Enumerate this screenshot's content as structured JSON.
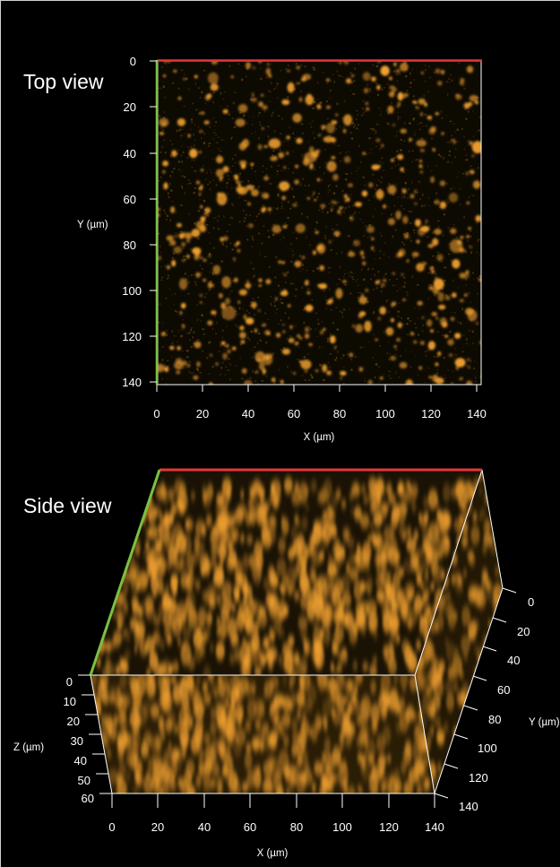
{
  "top_view": {
    "title": "Top view",
    "x_axis_label": "X (µm)",
    "y_axis_label": "Y (µm)",
    "x_ticks": [
      "0",
      "20",
      "40",
      "60",
      "80",
      "100",
      "120",
      "140"
    ],
    "y_ticks": [
      "0",
      "20",
      "40",
      "60",
      "80",
      "100",
      "120",
      "140"
    ]
  },
  "side_view": {
    "title": "Side view",
    "x_axis_label": "X (µm)",
    "y_axis_label": "Y (µm)",
    "z_axis_label": "Z (µm)",
    "x_ticks": [
      "0",
      "20",
      "40",
      "60",
      "80",
      "100",
      "120",
      "140"
    ],
    "y_ticks": [
      "0",
      "20",
      "40",
      "60",
      "80",
      "100",
      "120",
      "140"
    ],
    "z_ticks": [
      "0",
      "10",
      "20",
      "30",
      "40",
      "50",
      "60"
    ]
  },
  "colors": {
    "background": "#000000",
    "particle": "#f0a030",
    "x_axis_edge": "#e8363a",
    "y_axis_edge": "#7ac143",
    "axis_text": "#ffffff"
  }
}
